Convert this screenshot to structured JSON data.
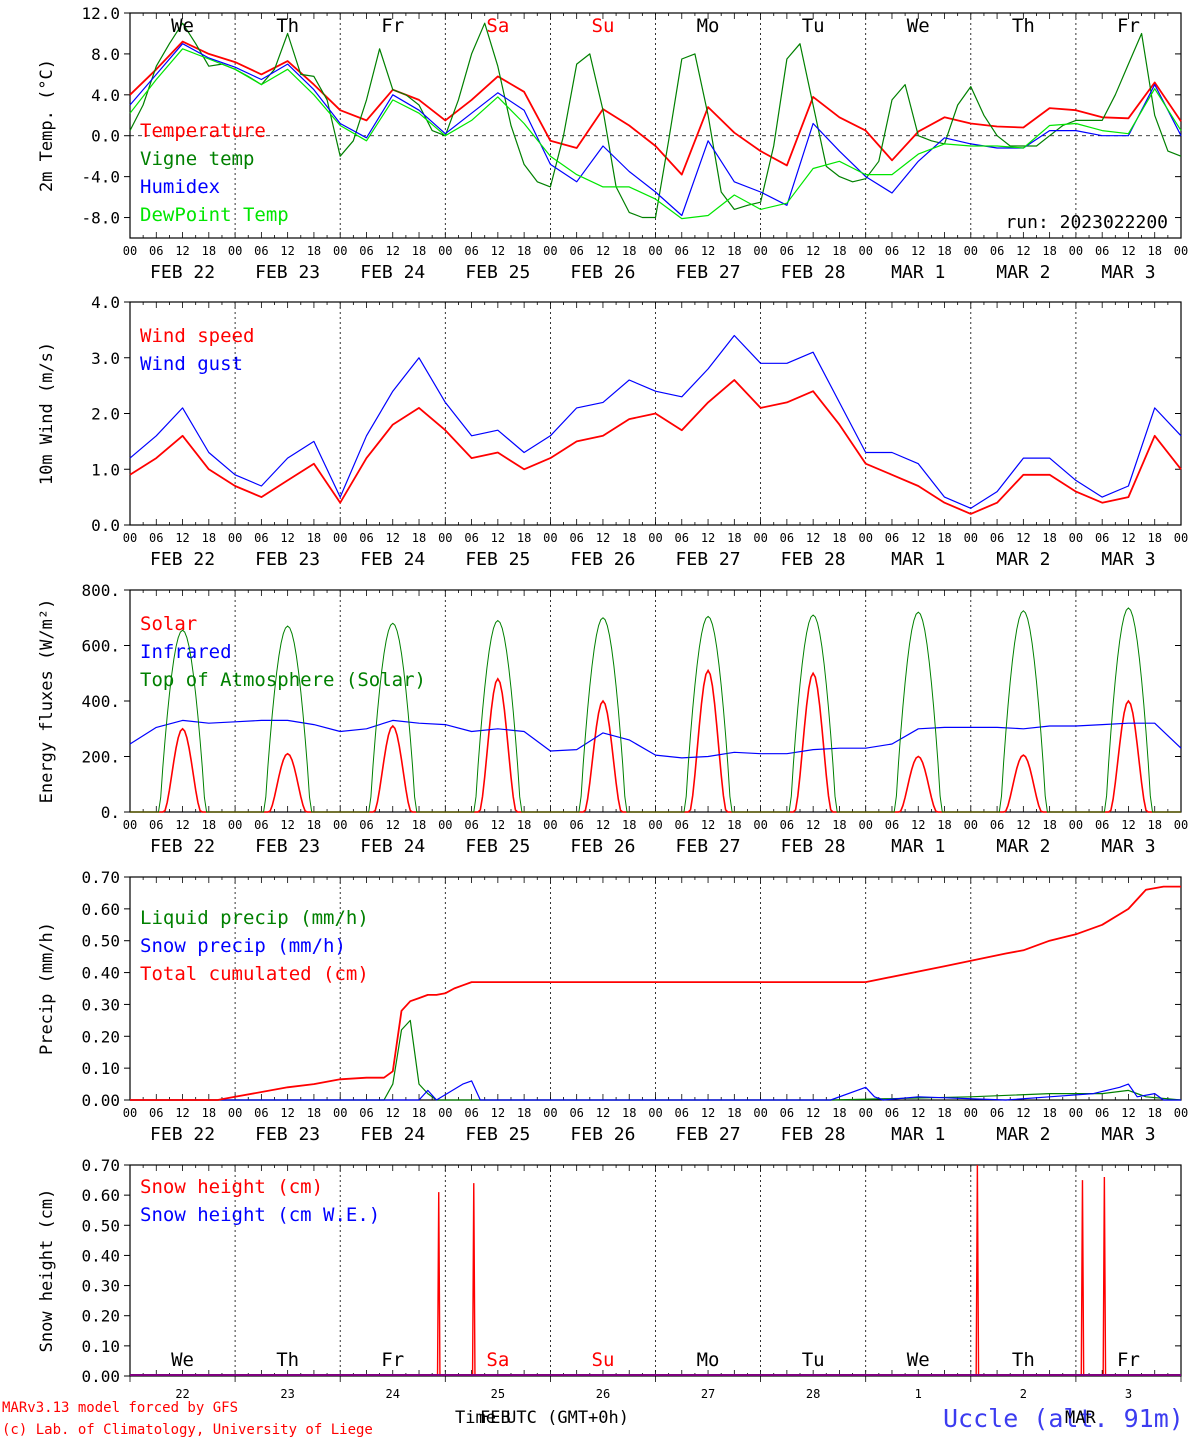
{
  "footer": {
    "model_line": "MARv3.13 model forced by GFS",
    "credit_line": "(c) Lab. of Climatology, University of Liege",
    "xlabel": "Time UTC (GMT+0h)",
    "month_overlay": "FEB",
    "station": "Uccle (alt. 91m)",
    "month_overlay2": "MAR"
  },
  "days": [
    "We",
    "Th",
    "Fr",
    "Sa",
    "Su",
    "Mo",
    "Tu",
    "We",
    "Th",
    "Fr"
  ],
  "weekend_color": "#ff0000",
  "date_labels": [
    "FEB 22",
    "FEB 23",
    "FEB 24",
    "FEB 25",
    "FEB 26",
    "FEB 27",
    "FEB 28",
    "MAR  1",
    "MAR  2",
    "MAR  3"
  ],
  "hour_ticks": [
    "00",
    "06",
    "12",
    "18"
  ],
  "day_numbers": [
    "22",
    "23",
    "24",
    "25",
    "26",
    "27",
    "28",
    "1",
    "2",
    "3"
  ],
  "colors": {
    "red": "#ff0000",
    "green": "#008000",
    "blue": "#0000ff",
    "lightgreen": "#00e600",
    "purple": "#800080"
  },
  "chart_data": [
    {
      "type": "line",
      "ylabel": "2m Temp. (°C)",
      "ylim": [
        -10,
        12
      ],
      "yticks": [
        "12.0",
        "8.0",
        "4.0",
        "0.0",
        "-4.0",
        "-8.0"
      ],
      "ytick_values": [
        12,
        8,
        4,
        0,
        -4,
        -8
      ],
      "run_label": "run: 2023022200",
      "x_unit": "hours since FEB 22 00 UTC",
      "series": [
        {
          "name": "Temperature",
          "color": "red",
          "x": [
            0,
            6,
            12,
            18,
            24,
            30,
            36,
            42,
            48,
            54,
            60,
            66,
            72,
            78,
            84,
            90,
            96,
            102,
            108,
            114,
            120,
            126,
            132,
            138,
            144,
            150,
            156,
            162,
            168,
            174,
            180,
            186,
            192,
            198,
            204,
            210,
            216,
            222,
            228,
            234,
            240
          ],
          "y": [
            4.0,
            6.5,
            9.2,
            8.0,
            7.2,
            6.0,
            7.3,
            5.0,
            2.5,
            1.5,
            4.5,
            3.5,
            1.5,
            3.5,
            5.8,
            4.3,
            -0.5,
            -1.2,
            2.6,
            1.0,
            -1.0,
            -3.8,
            2.8,
            0.3,
            -1.5,
            -2.9,
            3.8,
            1.8,
            0.5,
            -2.4,
            0.4,
            1.8,
            1.2,
            0.9,
            0.8,
            2.7,
            2.5,
            1.8,
            1.7,
            5.2,
            1.4
          ]
        },
        {
          "name": "Vigne temp",
          "color": "green",
          "x": [
            0,
            3,
            6,
            9,
            12,
            15,
            18,
            21,
            24,
            27,
            30,
            33,
            36,
            39,
            42,
            45,
            48,
            51,
            54,
            57,
            60,
            63,
            66,
            69,
            72,
            75,
            78,
            81,
            84,
            87,
            90,
            93,
            96,
            99,
            102,
            105,
            108,
            111,
            114,
            117,
            120,
            123,
            126,
            129,
            132,
            135,
            138,
            141,
            144,
            147,
            150,
            153,
            156,
            159,
            162,
            165,
            168,
            171,
            174,
            177,
            180,
            183,
            186,
            189,
            192,
            195,
            198,
            201,
            204,
            207,
            210,
            213,
            216,
            219,
            222,
            225,
            228,
            231,
            234,
            237,
            240
          ],
          "y": [
            0.5,
            3.0,
            6.8,
            9.0,
            11.0,
            9.0,
            6.8,
            7.0,
            6.5,
            5.8,
            5.0,
            6.5,
            10.0,
            6.0,
            5.8,
            3.5,
            -2.0,
            -0.5,
            3.5,
            8.5,
            4.5,
            4.0,
            3.0,
            0.5,
            0.0,
            3.5,
            8.0,
            11.0,
            6.8,
            1.0,
            -2.8,
            -4.5,
            -5.0,
            0.0,
            7.0,
            8.0,
            2.5,
            -5.0,
            -7.5,
            -8.0,
            -8.0,
            -0.5,
            7.5,
            8.0,
            2.0,
            -5.5,
            -7.2,
            -6.8,
            -6.5,
            -1.0,
            7.5,
            9.0,
            3.0,
            -3.0,
            -4.0,
            -4.5,
            -4.2,
            -2.5,
            3.5,
            5.0,
            0.0,
            -0.5,
            -0.8,
            3.0,
            4.8,
            2.0,
            0.0,
            -1.0,
            -1.0,
            -1.0,
            0.0,
            1.0,
            1.5,
            1.5,
            1.5,
            4.0,
            7.0,
            10.0,
            2.0,
            -1.5,
            -2.0
          ]
        },
        {
          "name": "Humidex",
          "color": "blue",
          "x": [
            0,
            6,
            12,
            18,
            24,
            30,
            36,
            42,
            48,
            54,
            60,
            66,
            72,
            78,
            84,
            90,
            96,
            102,
            108,
            114,
            120,
            126,
            132,
            138,
            144,
            150,
            156,
            162,
            168,
            174,
            180,
            186,
            192,
            198,
            204,
            210,
            216,
            222,
            228,
            234,
            240
          ],
          "y": [
            3.0,
            6.0,
            9.0,
            7.6,
            6.7,
            5.5,
            7.0,
            4.5,
            1.2,
            -0.2,
            4.0,
            2.5,
            0.2,
            2.2,
            4.2,
            2.5,
            -2.8,
            -4.5,
            -1.0,
            -3.5,
            -5.5,
            -7.8,
            -0.5,
            -4.5,
            -5.5,
            -6.8,
            1.2,
            -1.5,
            -4.0,
            -5.6,
            -2.5,
            -0.2,
            -0.8,
            -1.2,
            -1.2,
            0.5,
            0.5,
            0.0,
            0.0,
            5.0,
            0.0
          ]
        },
        {
          "name": "DewPoint Temp",
          "color": "lightgreen",
          "x": [
            0,
            6,
            12,
            18,
            24,
            30,
            36,
            42,
            48,
            54,
            60,
            66,
            72,
            78,
            84,
            90,
            96,
            102,
            108,
            114,
            120,
            126,
            132,
            138,
            144,
            150,
            156,
            162,
            168,
            174,
            180,
            186,
            192,
            198,
            204,
            210,
            216,
            222,
            228,
            234,
            240
          ],
          "y": [
            2.2,
            5.5,
            8.5,
            7.5,
            6.5,
            5.0,
            6.5,
            4.0,
            1.0,
            -0.5,
            3.5,
            2.2,
            0.0,
            1.5,
            3.8,
            1.2,
            -2.0,
            -3.8,
            -5.0,
            -5.0,
            -6.2,
            -8.1,
            -7.8,
            -5.8,
            -7.2,
            -6.6,
            -3.2,
            -2.5,
            -3.8,
            -3.8,
            -1.8,
            -0.8,
            -1.0,
            -1.0,
            -1.2,
            1.0,
            1.2,
            0.5,
            0.2,
            4.6,
            0.5
          ]
        }
      ]
    },
    {
      "type": "line",
      "ylabel": "10m Wind (m/s)",
      "ylim": [
        0,
        4
      ],
      "yticks": [
        "4.0",
        "3.0",
        "2.0",
        "1.0",
        "0.0"
      ],
      "ytick_values": [
        4,
        3,
        2,
        1,
        0
      ],
      "x_unit": "hours since FEB 22 00 UTC",
      "series": [
        {
          "name": "Wind speed",
          "color": "red",
          "x": [
            0,
            6,
            12,
            18,
            24,
            30,
            36,
            42,
            48,
            54,
            60,
            66,
            72,
            78,
            84,
            90,
            96,
            102,
            108,
            114,
            120,
            126,
            132,
            138,
            144,
            150,
            156,
            162,
            168,
            174,
            180,
            186,
            192,
            198,
            204,
            210,
            216,
            222,
            228,
            234,
            240
          ],
          "y": [
            0.9,
            1.2,
            1.6,
            1.0,
            0.7,
            0.5,
            0.8,
            1.1,
            0.4,
            1.2,
            1.8,
            2.1,
            1.7,
            1.2,
            1.3,
            1.0,
            1.2,
            1.5,
            1.6,
            1.9,
            2.0,
            1.7,
            2.2,
            2.6,
            2.1,
            2.2,
            2.4,
            1.8,
            1.1,
            0.9,
            0.7,
            0.4,
            0.2,
            0.4,
            0.9,
            0.9,
            0.6,
            0.4,
            0.5,
            1.6,
            1.0
          ]
        },
        {
          "name": "Wind gust",
          "color": "blue",
          "x": [
            0,
            6,
            12,
            18,
            24,
            30,
            36,
            42,
            48,
            54,
            60,
            66,
            72,
            78,
            84,
            90,
            96,
            102,
            108,
            114,
            120,
            126,
            132,
            138,
            144,
            150,
            156,
            162,
            168,
            174,
            180,
            186,
            192,
            198,
            204,
            210,
            216,
            222,
            228,
            234,
            240
          ],
          "y": [
            1.2,
            1.6,
            2.1,
            1.3,
            0.9,
            0.7,
            1.2,
            1.5,
            0.5,
            1.6,
            2.4,
            3.0,
            2.2,
            1.6,
            1.7,
            1.3,
            1.6,
            2.1,
            2.2,
            2.6,
            2.4,
            2.3,
            2.8,
            3.4,
            2.9,
            2.9,
            3.1,
            2.2,
            1.3,
            1.3,
            1.1,
            0.5,
            0.3,
            0.6,
            1.2,
            1.2,
            0.8,
            0.5,
            0.7,
            2.1,
            1.6
          ]
        }
      ]
    },
    {
      "type": "line",
      "ylabel": "Energy fluxes (W/m²)",
      "ylim": [
        0,
        800
      ],
      "yticks": [
        "800.",
        "600.",
        "400.",
        "200.",
        "0."
      ],
      "ytick_values": [
        800,
        600,
        400,
        200,
        0
      ],
      "x_unit": "hours since FEB 22 00 UTC",
      "series": [
        {
          "name": "Solar",
          "color": "red",
          "daily_peak_hour": 12,
          "daily_peaks": [
            300,
            210,
            310,
            480,
            400,
            510,
            500,
            200,
            205,
            400
          ]
        },
        {
          "name": "Infrared",
          "color": "blue",
          "x": [
            0,
            6,
            12,
            18,
            24,
            30,
            36,
            42,
            48,
            54,
            60,
            66,
            72,
            78,
            84,
            90,
            96,
            102,
            108,
            114,
            120,
            126,
            132,
            138,
            144,
            150,
            156,
            162,
            168,
            174,
            180,
            186,
            192,
            198,
            204,
            210,
            216,
            222,
            228,
            234,
            240
          ],
          "y": [
            245,
            305,
            330,
            320,
            325,
            330,
            330,
            315,
            290,
            300,
            330,
            320,
            315,
            290,
            300,
            290,
            220,
            225,
            285,
            260,
            205,
            195,
            200,
            215,
            210,
            210,
            225,
            230,
            230,
            245,
            300,
            305,
            305,
            305,
            300,
            310,
            310,
            315,
            320,
            320,
            230
          ]
        },
        {
          "name": "Top of Atmosphere (Solar)",
          "color": "green",
          "daily_peak_hour": 12,
          "daily_peaks": [
            655,
            670,
            680,
            690,
            700,
            705,
            710,
            720,
            725,
            735
          ]
        }
      ]
    },
    {
      "type": "line",
      "ylabel": "Precip (mm/h)",
      "ylim": [
        0,
        0.7
      ],
      "yticks": [
        "0.70",
        "0.60",
        "0.50",
        "0.40",
        "0.30",
        "0.20",
        "0.10",
        "0.00"
      ],
      "ytick_values": [
        0.7,
        0.6,
        0.5,
        0.4,
        0.3,
        0.2,
        0.1,
        0.0
      ],
      "x_unit": "hours since FEB 22 00 UTC",
      "series": [
        {
          "name": "Liquid precip (mm/h)",
          "color": "green",
          "x": [
            0,
            58,
            60,
            62,
            64,
            66,
            68,
            70,
            160,
            192,
            210,
            222,
            228,
            232,
            240
          ],
          "y": [
            0,
            0,
            0.05,
            0.22,
            0.25,
            0.05,
            0.02,
            0,
            0,
            0.01,
            0.02,
            0.02,
            0.03,
            0.01,
            0
          ]
        },
        {
          "name": "Snow precip (mm/h)",
          "color": "blue",
          "x": [
            0,
            66,
            68,
            70,
            76,
            78,
            80,
            160,
            168,
            170,
            172,
            180,
            200,
            210,
            220,
            226,
            228,
            230,
            234,
            236,
            240
          ],
          "y": [
            0,
            0,
            0.03,
            0,
            0.05,
            0.06,
            0,
            0,
            0.04,
            0.01,
            0,
            0.01,
            0,
            0.01,
            0.02,
            0.04,
            0.05,
            0.01,
            0.02,
            0,
            0
          ]
        },
        {
          "name": "Total cumulated (cm)",
          "color": "red",
          "x": [
            0,
            20,
            24,
            36,
            42,
            48,
            54,
            58,
            60,
            62,
            64,
            66,
            68,
            70,
            72,
            74,
            76,
            78,
            80,
            120,
            168,
            186,
            200,
            204,
            210,
            216,
            222,
            228,
            232,
            236,
            240
          ],
          "y": [
            0,
            0,
            0.01,
            0.04,
            0.05,
            0.065,
            0.07,
            0.07,
            0.09,
            0.28,
            0.31,
            0.32,
            0.33,
            0.33,
            0.335,
            0.35,
            0.36,
            0.37,
            0.37,
            0.37,
            0.37,
            0.42,
            0.46,
            0.47,
            0.5,
            0.52,
            0.55,
            0.6,
            0.66,
            0.67,
            0.67
          ]
        }
      ]
    },
    {
      "type": "line",
      "ylabel": "Snow height (cm)",
      "ylim": [
        0,
        0.7
      ],
      "yticks": [
        "0.70",
        "0.60",
        "0.50",
        "0.40",
        "0.30",
        "0.20",
        "0.10",
        "0.00"
      ],
      "ytick_values": [
        0.7,
        0.6,
        0.5,
        0.4,
        0.3,
        0.2,
        0.1,
        0.0
      ],
      "x_unit": "hours since FEB 22 00 UTC",
      "series": [
        {
          "name": "Snow height (cm)",
          "color": "red",
          "spikes": [
            {
              "x": 70.5,
              "y": 0.61
            },
            {
              "x": 78.5,
              "y": 0.64
            },
            {
              "x": 193.5,
              "y": 0.7
            },
            {
              "x": 217.5,
              "y": 0.65
            },
            {
              "x": 222.5,
              "y": 0.66
            }
          ]
        },
        {
          "name": "Snow height (cm W.E.)",
          "color": "blue",
          "spikes": []
        }
      ]
    }
  ]
}
